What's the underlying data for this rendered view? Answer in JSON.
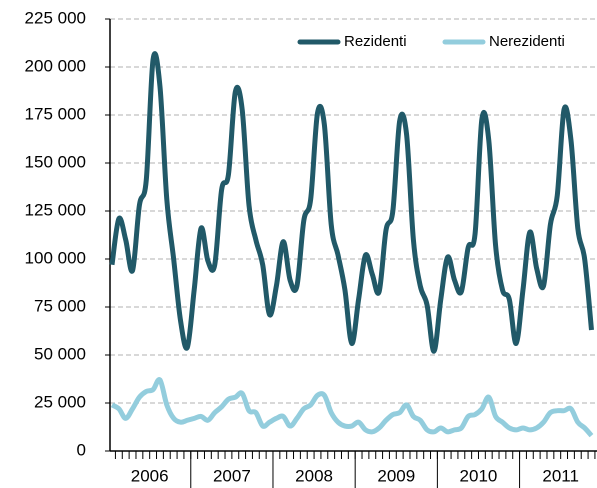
{
  "chart_data": {
    "type": "line",
    "categories": [
      "2006",
      null,
      null,
      null,
      null,
      null,
      null,
      null,
      null,
      null,
      null,
      null,
      "2007",
      null,
      null,
      null,
      null,
      null,
      null,
      null,
      null,
      null,
      null,
      null,
      "2008",
      null,
      null,
      null,
      null,
      null,
      null,
      null,
      null,
      null,
      null,
      null,
      "2009",
      null,
      null,
      null,
      null,
      null,
      null,
      null,
      null,
      null,
      null,
      null,
      "2010",
      null,
      null,
      null,
      null,
      null,
      null,
      null,
      null,
      null,
      null,
      null,
      "2011",
      null,
      null,
      null,
      null,
      null,
      null,
      null,
      null,
      null,
      null
    ],
    "series": [
      {
        "name": "Rezidenti",
        "color": "#215968",
        "values": [
          97000,
          121000,
          110000,
          94000,
          128000,
          141000,
          204000,
          190000,
          131000,
          100000,
          68000,
          54000,
          84000,
          116000,
          99000,
          97000,
          136000,
          144000,
          187000,
          178000,
          128000,
          110000,
          97000,
          71000,
          86000,
          109000,
          89000,
          86000,
          120000,
          131000,
          176000,
          170000,
          118000,
          102000,
          84000,
          56000,
          79000,
          102000,
          92000,
          83000,
          115000,
          125000,
          172000,
          165000,
          110000,
          86000,
          76000,
          52000,
          79000,
          101000,
          89000,
          83000,
          106000,
          113000,
          173000,
          162000,
          107000,
          84000,
          79000,
          56000,
          84000,
          114000,
          95000,
          86000,
          118000,
          133000,
          178000,
          162000,
          116000,
          100000,
          63000
        ]
      },
      {
        "name": "Nerezidenti",
        "color": "#93cddd",
        "values": [
          24000,
          22000,
          17000,
          22000,
          28000,
          31000,
          32000,
          37000,
          24000,
          17000,
          15000,
          16000,
          17000,
          18000,
          16000,
          20000,
          23000,
          27000,
          28000,
          30000,
          21000,
          20000,
          13000,
          15000,
          17000,
          18000,
          13000,
          17000,
          22000,
          24000,
          29000,
          29000,
          20000,
          15000,
          13000,
          13000,
          15000,
          11000,
          10000,
          12000,
          16000,
          19000,
          20000,
          24000,
          18000,
          16000,
          11000,
          10000,
          12000,
          10000,
          11000,
          12000,
          18000,
          19000,
          22000,
          28000,
          18000,
          15000,
          12000,
          11000,
          12000,
          11000,
          12000,
          15000,
          20000,
          21000,
          21000,
          22000,
          15000,
          12000,
          8000
        ]
      }
    ],
    "ylim": [
      0,
      225000
    ],
    "yticks": [
      0,
      {
        "value": 25000,
        "label": "25 000"
      },
      {
        "value": 50000,
        "label": "50 000"
      },
      {
        "value": 75000,
        "label": "75 000"
      },
      {
        "value": 100000,
        "label": "100 000"
      },
      {
        "value": 125000,
        "label": "125 000"
      },
      {
        "value": 150000,
        "label": "150 000"
      },
      {
        "value": 175000,
        "label": "175 000"
      },
      {
        "value": 200000,
        "label": "200 000"
      },
      {
        "value": 225000,
        "label": "225 000"
      }
    ],
    "grid": true,
    "legend": "top-right"
  }
}
